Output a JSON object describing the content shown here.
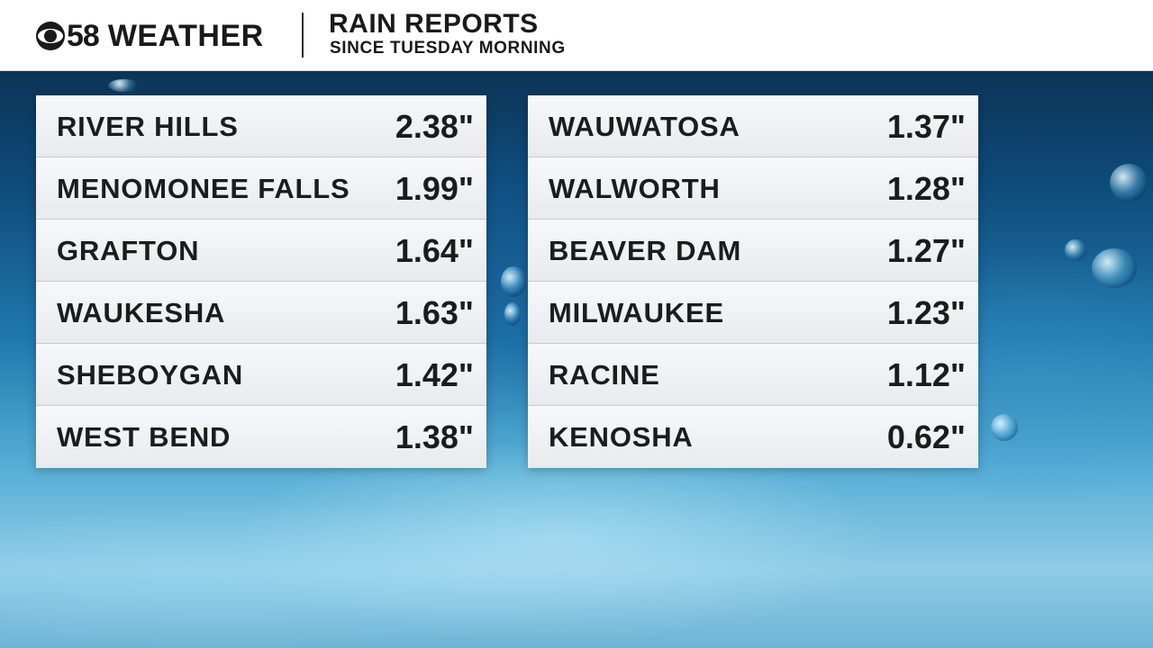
{
  "header": {
    "logo_number": "58",
    "logo_text": "WEATHER",
    "title": "RAIN REPORTS",
    "subtitle": "SINCE TUESDAY MORNING"
  },
  "left_table": [
    {
      "city": "RIVER HILLS",
      "amount": "2.38\""
    },
    {
      "city": "MENOMONEE FALLS",
      "amount": "1.99\""
    },
    {
      "city": "GRAFTON",
      "amount": "1.64\""
    },
    {
      "city": "WAUKESHA",
      "amount": "1.63\""
    },
    {
      "city": "SHEBOYGAN",
      "amount": "1.42\""
    },
    {
      "city": "WEST BEND",
      "amount": "1.38\""
    }
  ],
  "right_table": [
    {
      "city": "WAUWATOSA",
      "amount": "1.37\""
    },
    {
      "city": "WALWORTH",
      "amount": "1.28\""
    },
    {
      "city": "BEAVER DAM",
      "amount": "1.27\""
    },
    {
      "city": "MILWAUKEE",
      "amount": "1.23\""
    },
    {
      "city": "RACINE",
      "amount": "1.12\""
    },
    {
      "city": "KENOSHA",
      "amount": "0.62\""
    }
  ]
}
